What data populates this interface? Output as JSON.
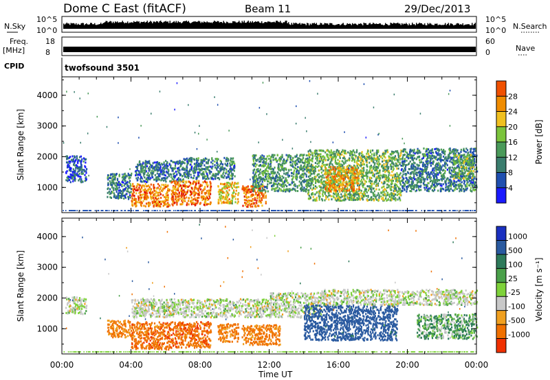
{
  "header": {
    "title": "Dome C East (fitACF)",
    "beam": "Beam 11",
    "date": "29/Dec/2013"
  },
  "strip_labels": {
    "nsky": "N.Sky",
    "nsky_ticks": [
      "10^5",
      "10^0"
    ],
    "nsearch": "N.Search",
    "nsearch_ticks": [
      "10^5",
      "10^0"
    ],
    "freq_line1": "Freq.",
    "freq_line2": "[MHz]",
    "freq_ticks": [
      "18",
      "8"
    ],
    "nave": "Nave",
    "nave_ticks": [
      "60",
      "0"
    ],
    "cpid": "CPID",
    "program": "twofsound 3501"
  },
  "colors": {
    "power_scale": [
      "#1a1aff",
      "#1f4fb0",
      "#3a7d6e",
      "#4a9a5a",
      "#7bc43c",
      "#f0c020",
      "#f08c00",
      "#f05000",
      "#e01000"
    ],
    "velocity_scale": [
      "#1a30c0",
      "#2a5aa0",
      "#2d7a5a",
      "#4aa04a",
      "#7ed23a",
      "#c8c8c8",
      "#f0a020",
      "#f07000",
      "#f03000",
      "#e00000"
    ]
  },
  "chart_data": [
    {
      "type": "heatmap",
      "panel": "power",
      "xlabel": "",
      "ylabel": "Slant Range [km]",
      "xlim": [
        0,
        24
      ],
      "ylim": [
        180,
        4600
      ],
      "yticks": [
        1000,
        2000,
        3000,
        4000
      ],
      "colorbar_label": "Power [dB]",
      "colorbar_ticks": [
        "4",
        "8",
        "12",
        "16",
        "20",
        "24",
        "28"
      ],
      "colorbar_range": [
        0,
        32
      ],
      "echo_regions": [
        {
          "t0": 0.2,
          "t1": 1.4,
          "r0": 1200,
          "r1": 2050,
          "p": 6
        },
        {
          "t0": 2.6,
          "t1": 4.0,
          "r0": 650,
          "r1": 1500,
          "p": 9
        },
        {
          "t0": 4.0,
          "t1": 6.2,
          "r0": 400,
          "r1": 1150,
          "p": 24
        },
        {
          "t0": 4.2,
          "t1": 7.0,
          "r0": 1200,
          "r1": 1900,
          "p": 8
        },
        {
          "t0": 6.3,
          "t1": 8.6,
          "r0": 450,
          "r1": 1250,
          "p": 25
        },
        {
          "t0": 7.0,
          "t1": 10.0,
          "r0": 1300,
          "r1": 2000,
          "p": 9
        },
        {
          "t0": 9.0,
          "t1": 10.2,
          "r0": 500,
          "r1": 1200,
          "p": 20
        },
        {
          "t0": 10.4,
          "t1": 11.8,
          "r0": 400,
          "r1": 1100,
          "p": 24
        },
        {
          "t0": 11.0,
          "t1": 14.2,
          "r0": 900,
          "r1": 2100,
          "p": 11
        },
        {
          "t0": 14.2,
          "t1": 19.6,
          "r0": 600,
          "r1": 2250,
          "p": 14
        },
        {
          "t0": 15.2,
          "t1": 17.2,
          "r0": 900,
          "r1": 1700,
          "p": 22
        },
        {
          "t0": 19.6,
          "t1": 24.0,
          "r0": 900,
          "r1": 2300,
          "p": 9
        },
        {
          "t0": 22.6,
          "t1": 23.8,
          "r0": 1300,
          "r1": 2100,
          "p": 14
        }
      ]
    },
    {
      "type": "heatmap",
      "panel": "velocity",
      "xlabel": "Time UT",
      "ylabel": "Slant Range [km]",
      "xlim": [
        0,
        24
      ],
      "xticks": [
        "00:00",
        "04:00",
        "08:00",
        "12:00",
        "16:00",
        "20:00",
        "00:00"
      ],
      "ylim": [
        180,
        4600
      ],
      "yticks": [
        1000,
        2000,
        3000,
        4000
      ],
      "colorbar_label": "Velocity [m s⁻¹]",
      "colorbar_ticks": [
        "1000",
        "500",
        "100",
        "25",
        "-25",
        "-100",
        "-500",
        "-1000"
      ],
      "echo_regions": [
        {
          "t0": 0.2,
          "t1": 1.4,
          "r0": 1500,
          "r1": 2050,
          "v": 0
        },
        {
          "t0": 2.6,
          "t1": 4.0,
          "r0": 750,
          "r1": 1300,
          "v": -120
        },
        {
          "t0": 4.0,
          "t1": 6.3,
          "r0": 350,
          "r1": 1250,
          "v": -200
        },
        {
          "t0": 6.3,
          "t1": 8.6,
          "r0": 400,
          "r1": 1250,
          "v": -220
        },
        {
          "t0": 4.0,
          "t1": 12.0,
          "r0": 1400,
          "r1": 2000,
          "v": 0
        },
        {
          "t0": 9.0,
          "t1": 10.2,
          "r0": 600,
          "r1": 1200,
          "v": -150
        },
        {
          "t0": 10.4,
          "t1": 12.6,
          "r0": 500,
          "r1": 1150,
          "v": -160
        },
        {
          "t0": 12.0,
          "t1": 15.0,
          "r0": 1400,
          "r1": 2200,
          "v": 0
        },
        {
          "t0": 14.0,
          "t1": 19.4,
          "r0": 650,
          "r1": 1800,
          "v": 250
        },
        {
          "t0": 15.0,
          "t1": 24.0,
          "r0": 1800,
          "r1": 2300,
          "v": 0
        },
        {
          "t0": 20.5,
          "t1": 24.0,
          "r0": 700,
          "r1": 1500,
          "v": 40
        }
      ]
    }
  ]
}
